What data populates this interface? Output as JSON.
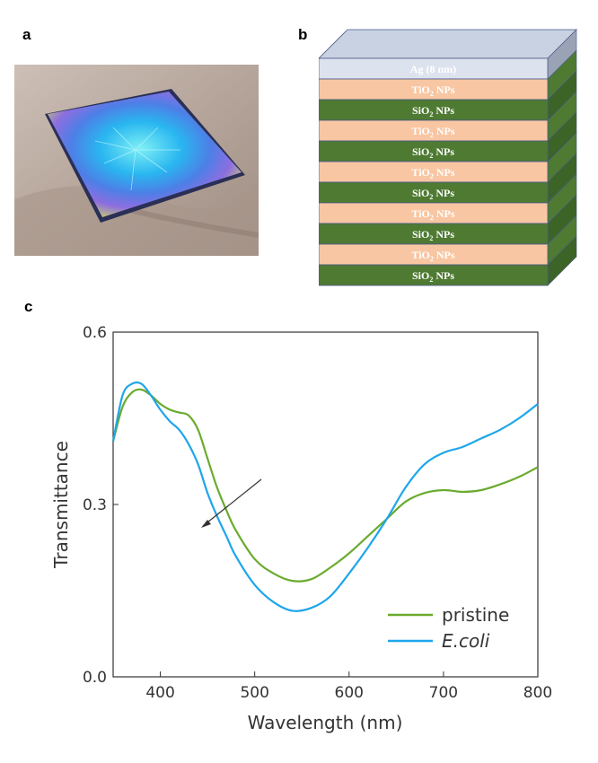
{
  "panels": {
    "a": "a",
    "b": "b",
    "c": "c"
  },
  "stack": {
    "top_layer": "Ag (8 nm)",
    "layers": [
      {
        "material": "TiO",
        "sub": "2",
        "suffix": " NPs",
        "color": "#f8c6a2"
      },
      {
        "material": "SiO",
        "sub": "2",
        "suffix": " NPs",
        "color": "#4e7a32"
      },
      {
        "material": "TiO",
        "sub": "2",
        "suffix": " NPs",
        "color": "#f8c6a2"
      },
      {
        "material": "SiO",
        "sub": "2",
        "suffix": " NPs",
        "color": "#4e7a32"
      },
      {
        "material": "TiO",
        "sub": "2",
        "suffix": " NPs",
        "color": "#f8c6a2"
      },
      {
        "material": "SiO",
        "sub": "2",
        "suffix": " NPs",
        "color": "#4e7a32"
      },
      {
        "material": "TiO",
        "sub": "2",
        "suffix": " NPs",
        "color": "#f8c6a2"
      },
      {
        "material": "SiO",
        "sub": "2",
        "suffix": " NPs",
        "color": "#4e7a32"
      },
      {
        "material": "TiO",
        "sub": "2",
        "suffix": " NPs",
        "color": "#f8c6a2"
      },
      {
        "material": "SiO",
        "sub": "2",
        "suffix": " NPs",
        "color": "#4e7a32"
      }
    ],
    "ag_color": "#dde3ee",
    "ag_text_color": "#3a5a9a"
  },
  "chart_data": {
    "type": "line",
    "xlabel": "Wavelength (nm)",
    "ylabel": "Transmittance",
    "xlim": [
      350,
      800
    ],
    "ylim": [
      0.0,
      0.6
    ],
    "xticks": [
      400,
      500,
      600,
      700,
      800
    ],
    "yticks": [
      0.0,
      0.3,
      0.6
    ],
    "ytick_labels": [
      "0.0",
      "0.3",
      "0.6"
    ],
    "legend_position": "bottom-right",
    "series": [
      {
        "name": "pristine",
        "color": "#6aab2e",
        "x": [
          350,
          360,
          370,
          380,
          390,
          400,
          410,
          420,
          430,
          440,
          450,
          460,
          470,
          480,
          500,
          520,
          540,
          560,
          580,
          600,
          620,
          640,
          660,
          680,
          700,
          720,
          740,
          760,
          780,
          800
        ],
        "y": [
          0.41,
          0.47,
          0.495,
          0.5,
          0.49,
          0.475,
          0.465,
          0.46,
          0.455,
          0.43,
          0.38,
          0.33,
          0.29,
          0.255,
          0.205,
          0.18,
          0.167,
          0.17,
          0.19,
          0.215,
          0.245,
          0.275,
          0.305,
          0.32,
          0.325,
          0.322,
          0.325,
          0.335,
          0.348,
          0.365
        ]
      },
      {
        "name": "E.coli",
        "color": "#1ea6ea",
        "x": [
          350,
          360,
          370,
          380,
          390,
          400,
          410,
          420,
          430,
          440,
          450,
          460,
          470,
          480,
          500,
          520,
          540,
          560,
          580,
          600,
          620,
          640,
          660,
          680,
          700,
          720,
          740,
          760,
          780,
          800
        ],
        "y": [
          0.41,
          0.49,
          0.51,
          0.51,
          0.49,
          0.465,
          0.445,
          0.43,
          0.405,
          0.37,
          0.32,
          0.28,
          0.245,
          0.21,
          0.16,
          0.13,
          0.115,
          0.12,
          0.14,
          0.18,
          0.225,
          0.275,
          0.33,
          0.37,
          0.39,
          0.4,
          0.415,
          0.43,
          0.45,
          0.475
        ]
      }
    ]
  }
}
